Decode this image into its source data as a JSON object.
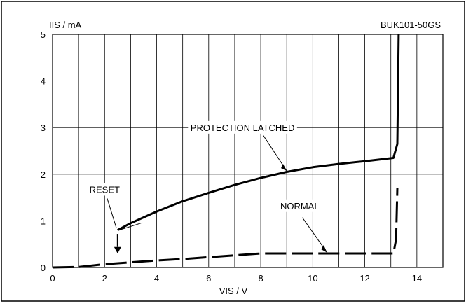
{
  "chart_data": {
    "type": "line",
    "title": "BUK101-50GS",
    "xlabel": "VIS / V",
    "ylabel": "IIS / mA",
    "xlim": [
      0,
      15
    ],
    "ylim": [
      0,
      5
    ],
    "xticks": [
      0,
      2,
      4,
      6,
      8,
      10,
      12,
      14
    ],
    "xtick_labels": [
      "0",
      "2",
      "4",
      "6",
      "8",
      "10",
      "12",
      "14"
    ],
    "yticks": [
      0,
      1,
      2,
      3,
      4,
      5
    ],
    "ytick_labels": [
      "0",
      "1",
      "2",
      "3",
      "4",
      "5"
    ],
    "grid": true,
    "series": [
      {
        "name": "PROTECTION LATCHED",
        "style": "solid",
        "x": [
          2.5,
          3,
          4,
          5,
          6,
          7,
          8,
          9,
          10,
          11,
          12,
          13.1,
          13.25,
          13.3
        ],
        "y": [
          0.8,
          0.95,
          1.2,
          1.42,
          1.6,
          1.77,
          1.92,
          2.05,
          2.15,
          2.22,
          2.28,
          2.35,
          2.65,
          5.0
        ]
      },
      {
        "name": "NORMAL",
        "style": "dashed",
        "x": [
          0,
          1,
          2,
          3,
          4,
          5,
          6,
          7,
          8,
          9,
          10,
          11,
          12,
          13.1,
          13.2,
          13.25
        ],
        "y": [
          0,
          0.01,
          0.07,
          0.11,
          0.15,
          0.18,
          0.22,
          0.26,
          0.3,
          0.3,
          0.3,
          0.3,
          0.3,
          0.3,
          0.6,
          1.7
        ]
      }
    ],
    "annotations": [
      {
        "text": "PROTECTION LATCHED",
        "x": 7.3,
        "y": 2.96
      },
      {
        "text": "NORMAL",
        "x": 9.5,
        "y": 1.28
      },
      {
        "text": "RESET",
        "x": 2.0,
        "y": 1.63
      }
    ]
  }
}
